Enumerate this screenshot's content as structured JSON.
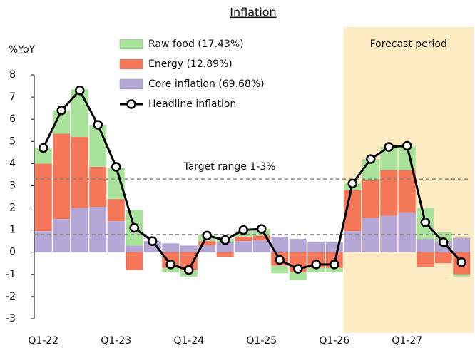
{
  "chart_data": {
    "type": "bar",
    "stacked": true,
    "title": "Inflation",
    "y_label": "%YoY",
    "categories": [
      "Q1-22",
      null,
      null,
      null,
      "Q1-23",
      null,
      null,
      null,
      "Q1-24",
      null,
      null,
      null,
      "Q1-25",
      null,
      null,
      null,
      "Q1-26",
      null,
      null,
      null,
      "Q1-27",
      null,
      null,
      null
    ],
    "series": [
      {
        "name": "Core inflation (69.68%)",
        "color": "#b4a7d6",
        "values": [
          0.95,
          1.5,
          2.0,
          2.05,
          1.4,
          0.3,
          0.5,
          0.4,
          0.3,
          0.3,
          0.45,
          0.5,
          0.55,
          0.7,
          0.6,
          0.45,
          0.45,
          0.95,
          1.55,
          1.65,
          1.8,
          0.6,
          0.5,
          0.65
        ]
      },
      {
        "name": "Energy (12.89%)",
        "color": "#f4775a",
        "values": [
          3.05,
          3.85,
          3.2,
          1.8,
          1.0,
          -0.8,
          0,
          -0.7,
          -0.8,
          0.2,
          -0.2,
          0.2,
          0.2,
          -0.6,
          -0.9,
          -0.7,
          -0.7,
          1.85,
          1.7,
          2.05,
          1.9,
          -0.65,
          -0.5,
          -1.0
        ]
      },
      {
        "name": "Raw food (17.43%)",
        "color": "#a9e29a",
        "values": [
          0.7,
          1.05,
          2.15,
          1.9,
          1.4,
          1.6,
          0,
          -0.2,
          -0.3,
          0.3,
          0.15,
          0.25,
          0.3,
          -0.35,
          -0.35,
          -0.2,
          -0.2,
          0.3,
          0.95,
          1.05,
          1.1,
          1.4,
          0.4,
          -0.1
        ]
      },
      {
        "name": "Headline inflation",
        "color": "#000000",
        "type": "line",
        "values": [
          4.7,
          6.4,
          7.3,
          5.75,
          3.85,
          1.1,
          0.5,
          -0.55,
          -0.8,
          0.75,
          0.55,
          1.0,
          1.05,
          -0.35,
          -0.75,
          -0.55,
          -0.55,
          3.1,
          4.2,
          4.75,
          4.8,
          1.35,
          0.45,
          -0.45
        ]
      }
    ],
    "reference_lines": [
      0.8,
      3.3
    ],
    "annotations": [
      "Target range 1-3%",
      "Forecast period"
    ],
    "ylim": [
      -3,
      8
    ],
    "yticks": [
      -3,
      -2,
      -1,
      0,
      1,
      2,
      3,
      4,
      5,
      6,
      7,
      8
    ]
  }
}
